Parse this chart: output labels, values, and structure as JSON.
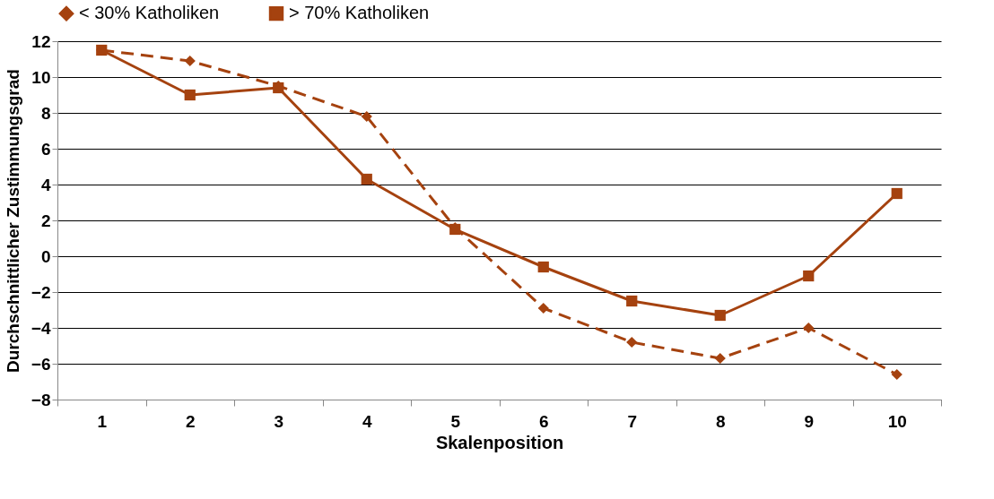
{
  "chart_data": {
    "type": "line",
    "xlabel": "Skalenposition",
    "ylabel": "Durchschnittlicher Zustimmungsgrad",
    "categories": [
      "1",
      "2",
      "3",
      "4",
      "5",
      "6",
      "7",
      "8",
      "9",
      "10"
    ],
    "series": [
      {
        "name": "< 30% Katholiken",
        "color": "#a5420f",
        "marker": "diamond",
        "line_style": "dashed",
        "values": [
          11.5,
          10.9,
          9.5,
          7.8,
          1.6,
          -2.9,
          -4.8,
          -5.7,
          -4.0,
          -6.6
        ]
      },
      {
        "name": "> 70% Katholiken",
        "color": "#a5420f",
        "marker": "square",
        "line_style": "solid",
        "values": [
          11.5,
          9.0,
          9.4,
          4.3,
          1.5,
          -0.6,
          -2.5,
          -3.3,
          -1.1,
          3.5
        ]
      }
    ],
    "ylim": [
      -8,
      12
    ],
    "yticks": [
      -8,
      -6,
      -4,
      -2,
      0,
      2,
      4,
      6,
      8,
      10,
      12
    ],
    "grid": "y",
    "legend": "top"
  }
}
